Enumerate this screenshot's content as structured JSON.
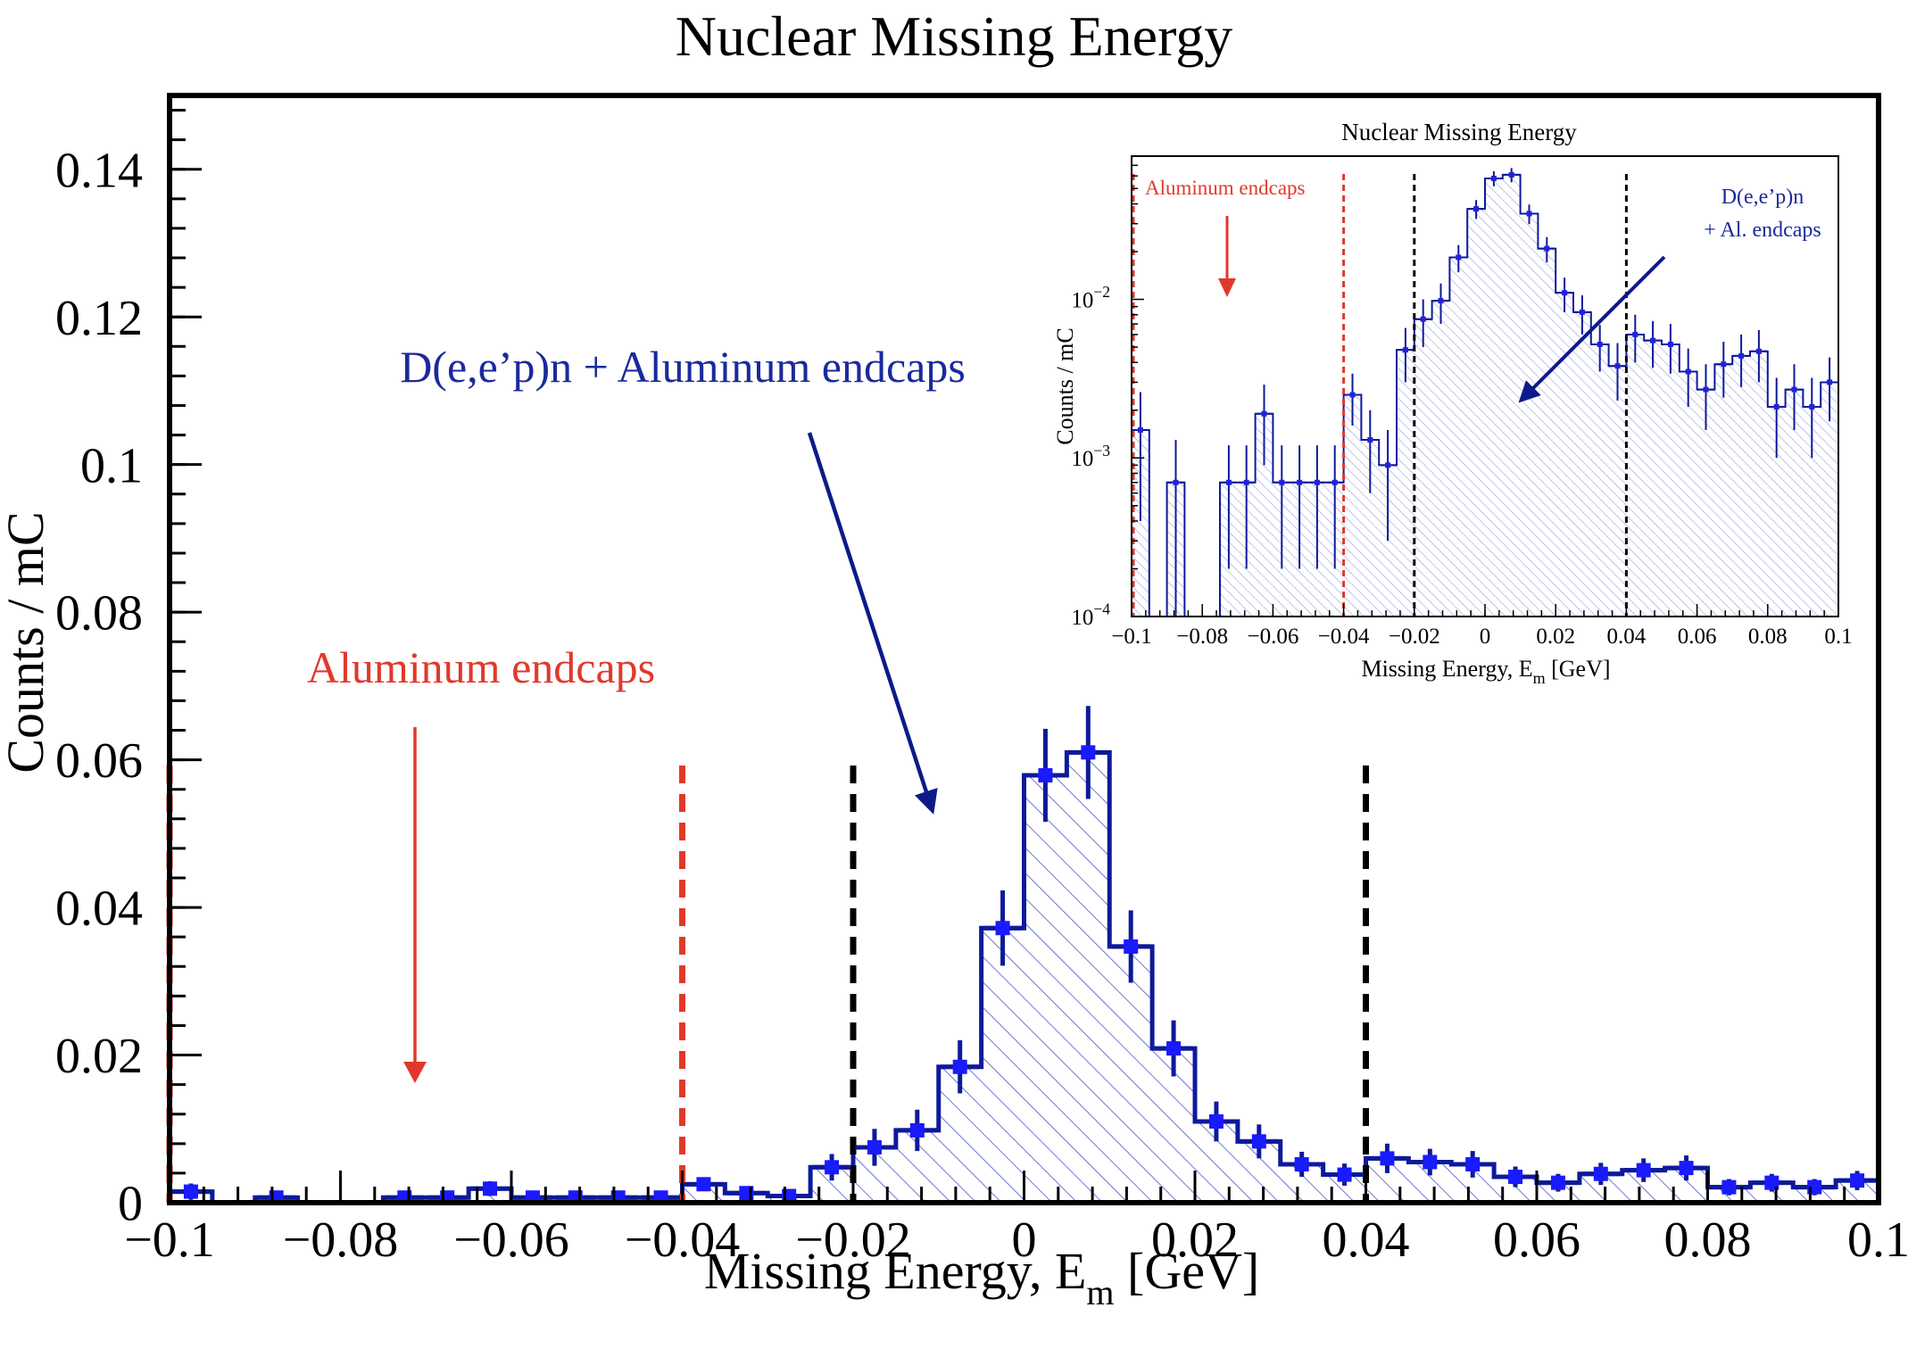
{
  "chart_data": [
    {
      "type": "histogram",
      "title": "Nuclear Missing Energy",
      "xlabel": "Missing Energy, E",
      "xlabel_sub": "m",
      "xlabel_unit": " [GeV]",
      "ylabel": "Counts / mC",
      "xlim": [
        -0.1,
        0.1
      ],
      "ylim": [
        0,
        0.15
      ],
      "yscale": "linear",
      "bin_width": 0.005,
      "x_ticks": [
        -0.1,
        -0.08,
        -0.06,
        -0.04,
        -0.02,
        0,
        0.02,
        0.04,
        0.06,
        0.08,
        0.1
      ],
      "x_tick_labels": [
        "−0.1",
        "−0.08",
        "−0.06",
        "−0.04",
        "−0.02",
        "0",
        "0.02",
        "0.04",
        "0.06",
        "0.08",
        "0.1"
      ],
      "y_ticks": [
        0,
        0.02,
        0.04,
        0.06,
        0.08,
        0.1,
        0.12,
        0.14
      ],
      "y_tick_labels": [
        "0",
        "0.02",
        "0.04",
        "0.06",
        "0.08",
        "0.1",
        "0.12",
        "0.14"
      ],
      "series": [
        {
          "x": [
            -0.0975,
            -0.0925,
            -0.0875,
            -0.0825,
            -0.0775,
            -0.0725,
            -0.0675,
            -0.0625,
            -0.0575,
            -0.0525,
            -0.0475,
            -0.0425,
            -0.0375,
            -0.0325,
            -0.0275,
            -0.0225,
            -0.0175,
            -0.0125,
            -0.0075,
            -0.0025,
            0.0025,
            0.0075,
            0.0125,
            0.0175,
            0.0225,
            0.0275,
            0.0325,
            0.0375,
            0.0425,
            0.0475,
            0.0525,
            0.0575,
            0.0625,
            0.0675,
            0.0725,
            0.0775,
            0.0825,
            0.0875,
            0.0925,
            0.0975
          ],
          "y": [
            0.0015,
            0.0,
            0.0007,
            0.0,
            0.0,
            0.0007,
            0.0007,
            0.0019,
            0.0007,
            0.0007,
            0.0007,
            0.0007,
            0.0025,
            0.0013,
            0.0009,
            0.0048,
            0.0075,
            0.0098,
            0.0184,
            0.0372,
            0.0579,
            0.061,
            0.0347,
            0.0209,
            0.011,
            0.0083,
            0.0052,
            0.0038,
            0.006,
            0.0055,
            0.0052,
            0.0035,
            0.0027,
            0.0039,
            0.0044,
            0.0047,
            0.0021,
            0.0027,
            0.0021,
            0.003
          ],
          "err": [
            0.0011,
            0.0,
            0.0006,
            0.0,
            0.0,
            0.0005,
            0.0005,
            0.001,
            0.0005,
            0.0005,
            0.0005,
            0.0005,
            0.0009,
            0.0007,
            0.0006,
            0.0018,
            0.0025,
            0.0028,
            0.0036,
            0.0051,
            0.0063,
            0.0063,
            0.0049,
            0.0038,
            0.0027,
            0.0023,
            0.0017,
            0.0015,
            0.002,
            0.0018,
            0.0018,
            0.0014,
            0.0012,
            0.0015,
            0.0016,
            0.0017,
            0.0011,
            0.0012,
            0.0011,
            0.0013
          ]
        }
      ],
      "vlines": [
        {
          "x": -0.1,
          "style": "dashed",
          "color": "#e0392b"
        },
        {
          "x": -0.04,
          "style": "dashed",
          "color": "#e0392b"
        },
        {
          "x": -0.02,
          "style": "dashed",
          "color": "#000000"
        },
        {
          "x": 0.04,
          "style": "dashed",
          "color": "#000000"
        }
      ],
      "annotations": [
        {
          "text": "D(e,e’p)n + Aluminum endcaps",
          "color": "#1a2a9c"
        },
        {
          "text": "Aluminum endcaps",
          "color": "#e0392b"
        }
      ]
    },
    {
      "type": "histogram",
      "title": "Nuclear Missing Energy",
      "xlabel": "Missing Energy, E",
      "xlabel_sub": "m",
      "xlabel_unit": " [GeV]",
      "ylabel": "Counts / mC",
      "xlim": [
        -0.1,
        0.1
      ],
      "ylim": [
        0.0001,
        0.08
      ],
      "yscale": "log",
      "bin_width": 0.005,
      "x_ticks": [
        -0.1,
        -0.08,
        -0.06,
        -0.04,
        -0.02,
        0,
        0.02,
        0.04,
        0.06,
        0.08,
        0.1
      ],
      "x_tick_labels": [
        "−0.1",
        "−0.08",
        "−0.06",
        "−0.04",
        "−0.02",
        "0",
        "0.02",
        "0.04",
        "0.06",
        "0.08",
        "0.1"
      ],
      "y_ticks": [
        0.0001,
        0.001,
        0.01
      ],
      "y_tick_labels": [
        "10",
        "10",
        "10"
      ],
      "y_tick_exponents": [
        "−4",
        "−3",
        "−2"
      ],
      "series": [
        {
          "x": [
            -0.0975,
            -0.0925,
            -0.0875,
            -0.0825,
            -0.0775,
            -0.0725,
            -0.0675,
            -0.0625,
            -0.0575,
            -0.0525,
            -0.0475,
            -0.0425,
            -0.0375,
            -0.0325,
            -0.0275,
            -0.0225,
            -0.0175,
            -0.0125,
            -0.0075,
            -0.0025,
            0.0025,
            0.0075,
            0.0125,
            0.0175,
            0.0225,
            0.0275,
            0.0325,
            0.0375,
            0.0425,
            0.0475,
            0.0525,
            0.0575,
            0.0625,
            0.0675,
            0.0725,
            0.0775,
            0.0825,
            0.0875,
            0.0925,
            0.0975
          ],
          "y": [
            0.0015,
            0.0,
            0.0007,
            0.0,
            0.0,
            0.0007,
            0.0007,
            0.0019,
            0.0007,
            0.0007,
            0.0007,
            0.0007,
            0.0025,
            0.0013,
            0.0009,
            0.0048,
            0.0075,
            0.0098,
            0.0184,
            0.0372,
            0.0579,
            0.061,
            0.0347,
            0.0209,
            0.011,
            0.0083,
            0.0052,
            0.0038,
            0.006,
            0.0055,
            0.0052,
            0.0035,
            0.0027,
            0.0039,
            0.0044,
            0.0047,
            0.0021,
            0.0027,
            0.0021,
            0.003
          ],
          "err": [
            0.0011,
            0.0,
            0.0006,
            0.0,
            0.0,
            0.0005,
            0.0005,
            0.001,
            0.0005,
            0.0005,
            0.0005,
            0.0005,
            0.0009,
            0.0007,
            0.0006,
            0.0018,
            0.0025,
            0.0028,
            0.0036,
            0.0051,
            0.0063,
            0.0063,
            0.0049,
            0.0038,
            0.0027,
            0.0023,
            0.0017,
            0.0015,
            0.002,
            0.0018,
            0.0018,
            0.0014,
            0.0012,
            0.0015,
            0.0016,
            0.0017,
            0.0011,
            0.0012,
            0.0011,
            0.0013
          ]
        }
      ],
      "vlines": [
        {
          "x": -0.1,
          "style": "dashed",
          "color": "#e0392b"
        },
        {
          "x": -0.04,
          "style": "dashed",
          "color": "#e0392b"
        },
        {
          "x": -0.02,
          "style": "dashed",
          "color": "#000000"
        },
        {
          "x": 0.04,
          "style": "dashed",
          "color": "#000000"
        }
      ],
      "annotations": [
        {
          "text": "Aluminum endcaps",
          "color": "#e0392b"
        },
        {
          "text": "D(e,e’p)n",
          "color": "#1a2a9c"
        },
        {
          "text": "+ Al. endcaps",
          "color": "#1a2a9c"
        }
      ]
    }
  ],
  "colors": {
    "histogram_line": "#0d1a9a",
    "hatch": "#4a55c8",
    "marker": "#1a1aff",
    "inset_marker": "#2222dd",
    "aluminum": "#e0392b",
    "signal_label": "#1a2a9c"
  }
}
